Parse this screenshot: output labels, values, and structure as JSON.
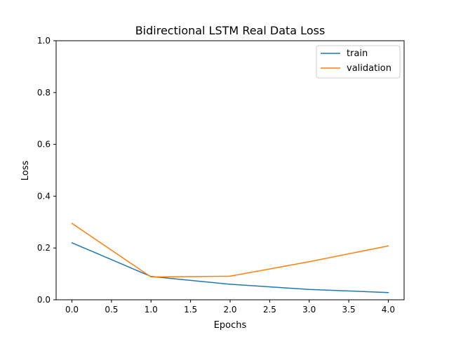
{
  "chart_data": {
    "type": "line",
    "title": "Bidirectional LSTM Real Data Loss",
    "xlabel": "Epochs",
    "ylabel": "Loss",
    "xlim": [
      -0.2,
      4.2
    ],
    "ylim": [
      0.0,
      1.0
    ],
    "xticks": [
      "0.0",
      "0.5",
      "1.0",
      "1.5",
      "2.0",
      "2.5",
      "3.0",
      "3.5",
      "4.0"
    ],
    "yticks": [
      "0.0",
      "0.2",
      "0.4",
      "0.6",
      "0.8",
      "1.0"
    ],
    "x": [
      0,
      1,
      2,
      3,
      4
    ],
    "series": [
      {
        "name": "train",
        "color": "#1f77b4",
        "values": [
          0.22,
          0.09,
          0.06,
          0.04,
          0.028
        ]
      },
      {
        "name": "validation",
        "color": "#ff7f0e",
        "values": [
          0.295,
          0.088,
          0.091,
          0.147,
          0.208
        ]
      }
    ],
    "grid": false,
    "legend_position": "top-right"
  }
}
